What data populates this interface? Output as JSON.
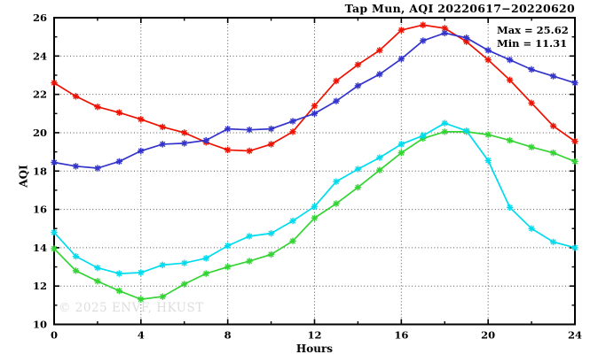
{
  "page": {
    "background": "#ffffff"
  },
  "chart_data": {
    "type": "line",
    "title": "Tap Mun, AQI 20220617−20220620",
    "xlabel": "Hours",
    "ylabel": "AQI",
    "xlim": [
      0,
      24
    ],
    "ylim": [
      10,
      26
    ],
    "x_major_ticks": [
      0,
      4,
      8,
      12,
      16,
      20,
      24
    ],
    "x_minor_step": 2,
    "y_major_ticks": [
      10,
      12,
      14,
      16,
      18,
      20,
      22,
      24,
      26
    ],
    "y_minor_step": 1,
    "grid": "dotted lines at major ticks, full frame box with inward ticks on all sides",
    "legend_position": "none",
    "annotations": {
      "max_label": "Max = 25.62",
      "min_label": "Min = 11.31"
    },
    "watermark": "© 2025 ENVF, HKUST",
    "marker": "asterisk-star",
    "x": [
      0,
      1,
      2,
      3,
      4,
      5,
      6,
      7,
      8,
      9,
      10,
      11,
      12,
      13,
      14,
      15,
      16,
      17,
      18,
      19,
      20,
      21,
      22,
      23,
      24
    ],
    "series": [
      {
        "name": "red-series",
        "color": "#ee1100",
        "values": [
          22.6,
          21.9,
          21.35,
          21.05,
          20.7,
          20.3,
          20.0,
          19.5,
          19.1,
          19.05,
          19.4,
          20.05,
          21.4,
          22.7,
          23.55,
          24.3,
          25.35,
          25.62,
          25.45,
          24.75,
          23.8,
          22.75,
          21.55,
          20.35,
          19.55
        ]
      },
      {
        "name": "blue-series",
        "color": "#3333cc",
        "values": [
          18.45,
          18.25,
          18.15,
          18.5,
          19.05,
          19.4,
          19.45,
          19.6,
          20.2,
          20.15,
          20.2,
          20.6,
          21.0,
          21.65,
          22.45,
          23.05,
          23.85,
          24.8,
          25.2,
          24.95,
          24.3,
          23.8,
          23.3,
          22.95,
          22.6
        ]
      },
      {
        "name": "green-series",
        "color": "#33d433",
        "values": [
          13.95,
          12.8,
          12.25,
          11.75,
          11.31,
          11.45,
          12.1,
          12.65,
          13.0,
          13.3,
          13.65,
          14.35,
          15.55,
          16.3,
          17.15,
          18.05,
          18.95,
          19.7,
          20.05,
          20.05,
          19.9,
          19.6,
          19.25,
          18.95,
          18.5
        ]
      },
      {
        "name": "cyan-series",
        "color": "#00dcee",
        "values": [
          14.8,
          13.55,
          12.95,
          12.65,
          12.7,
          13.1,
          13.2,
          13.45,
          14.1,
          14.6,
          14.75,
          15.4,
          16.15,
          17.45,
          18.1,
          18.7,
          19.4,
          19.85,
          20.5,
          20.1,
          18.55,
          16.1,
          15.0,
          14.3,
          14.0
        ]
      }
    ]
  }
}
